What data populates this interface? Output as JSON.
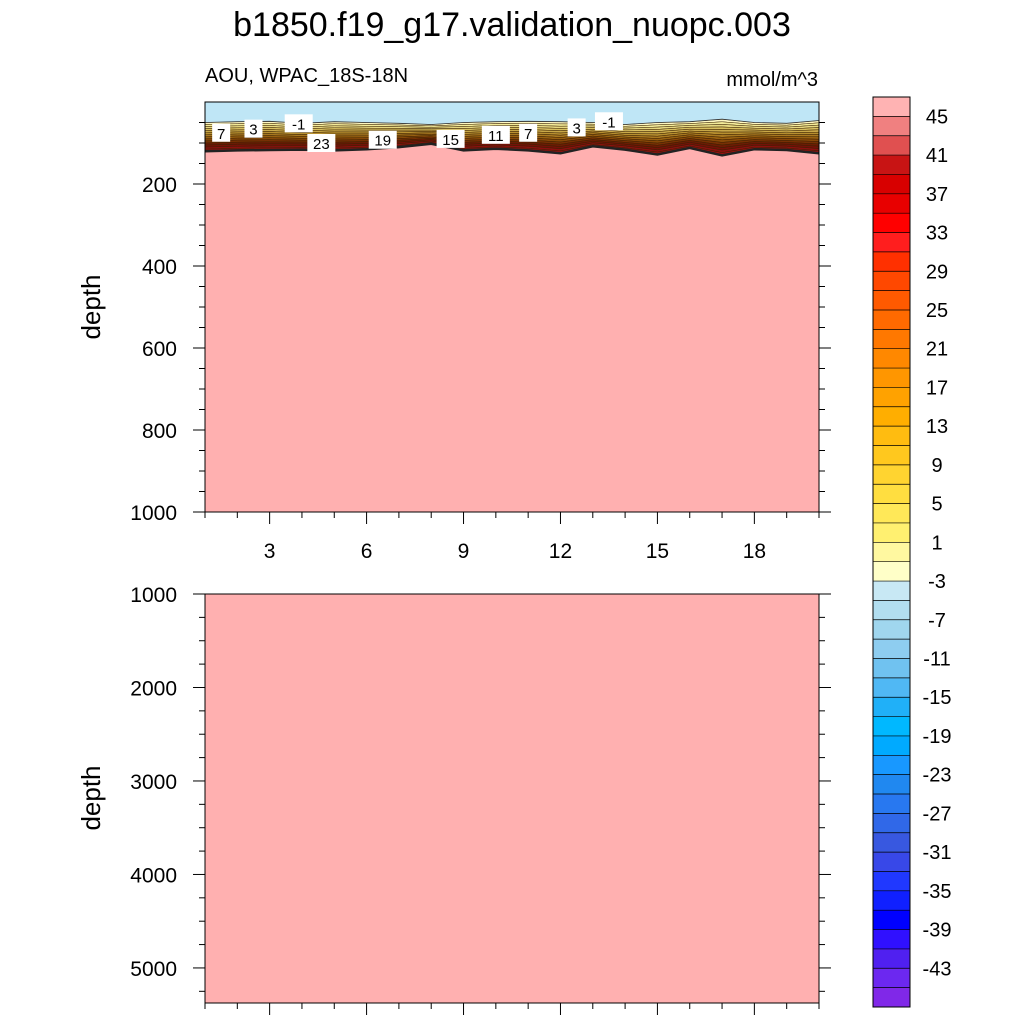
{
  "title": "b1850.f19_g17.validation_nuopc.003",
  "colors": {
    "surface_water": "#bfe6f6",
    "deep_water": "#ffb0b0",
    "axis": "#000000"
  },
  "chart_data": [
    {
      "type": "heatmap",
      "panel": "upper",
      "subtitle_left": "AOU, WPAC_18S-18N",
      "subtitle_right": "mmol/m^3",
      "ylabel": "depth",
      "ylim": [
        0,
        1000
      ],
      "y_reversed": true,
      "y_ticks": [
        "200",
        "400",
        "600",
        "800",
        "1000"
      ],
      "xlim": [
        1,
        20
      ],
      "x_ticks": [
        "3",
        "6",
        "9",
        "12",
        "15",
        "18"
      ],
      "contour_labels": [
        {
          "text": "7",
          "x": 1.5,
          "depth": 75
        },
        {
          "text": "3",
          "x": 2.5,
          "depth": 65
        },
        {
          "text": "-1",
          "x": 3.9,
          "depth": 52
        },
        {
          "text": "23",
          "x": 4.6,
          "depth": 100
        },
        {
          "text": "19",
          "x": 6.5,
          "depth": 92
        },
        {
          "text": "15",
          "x": 8.6,
          "depth": 90
        },
        {
          "text": "11",
          "x": 10.0,
          "depth": 80
        },
        {
          "text": "7",
          "x": 11.0,
          "depth": 75
        },
        {
          "text": "3",
          "x": 12.5,
          "depth": 62
        },
        {
          "text": "-1",
          "x": 13.5,
          "depth": 47
        }
      ],
      "surface_layer_depth": [
        50,
        48,
        47,
        52,
        48,
        50,
        52,
        55,
        50,
        48,
        47,
        48,
        50,
        55,
        50,
        48,
        42,
        50,
        52,
        45
      ],
      "thermocline_bottom_depth": [
        120,
        118,
        117,
        116,
        118,
        115,
        110,
        102,
        118,
        114,
        118,
        125,
        108,
        116,
        128,
        112,
        130,
        115,
        117,
        125
      ]
    },
    {
      "type": "heatmap",
      "panel": "lower",
      "ylabel": "depth",
      "ylim": [
        1000,
        5375
      ],
      "y_reversed": true,
      "y_ticks": [
        "1000",
        "2000",
        "3000",
        "4000",
        "5000"
      ],
      "xlim": [
        1,
        20
      ],
      "x_ticks": [
        "3",
        "6",
        "9",
        "12",
        "15",
        "18"
      ]
    }
  ],
  "colorbar": {
    "labels": [
      "45",
      "41",
      "37",
      "33",
      "29",
      "25",
      "21",
      "17",
      "13",
      "9",
      "5",
      "1",
      "-3",
      "-7",
      "-11",
      "-15",
      "-19",
      "-23",
      "-27",
      "-31",
      "-35",
      "-39",
      "-43"
    ],
    "colors": [
      "#ffb3b3",
      "#f08080",
      "#e05050",
      "#c81414",
      "#d80000",
      "#e80000",
      "#ff0000",
      "#ff1e1e",
      "#ff3000",
      "#ff4800",
      "#ff5a00",
      "#ff6a00",
      "#ff7800",
      "#ff8800",
      "#ff9600",
      "#ffa200",
      "#ffae00",
      "#ffbc10",
      "#ffc81e",
      "#ffd430",
      "#ffde40",
      "#ffe858",
      "#fff070",
      "#fff8a0",
      "#ffffc8",
      "#c8e8f4",
      "#b2def0",
      "#a0d6ee",
      "#8ecdf0",
      "#70c2f0",
      "#50b8f4",
      "#20b0f8",
      "#00b8ff",
      "#00aaff",
      "#1898ff",
      "#2088f0",
      "#2878f0",
      "#3068e8",
      "#3858e0",
      "#3848e8",
      "#2038ff",
      "#1020ff",
      "#0000ff",
      "#3010ff",
      "#5020f0",
      "#6c28f0",
      "#8028e8"
    ]
  }
}
